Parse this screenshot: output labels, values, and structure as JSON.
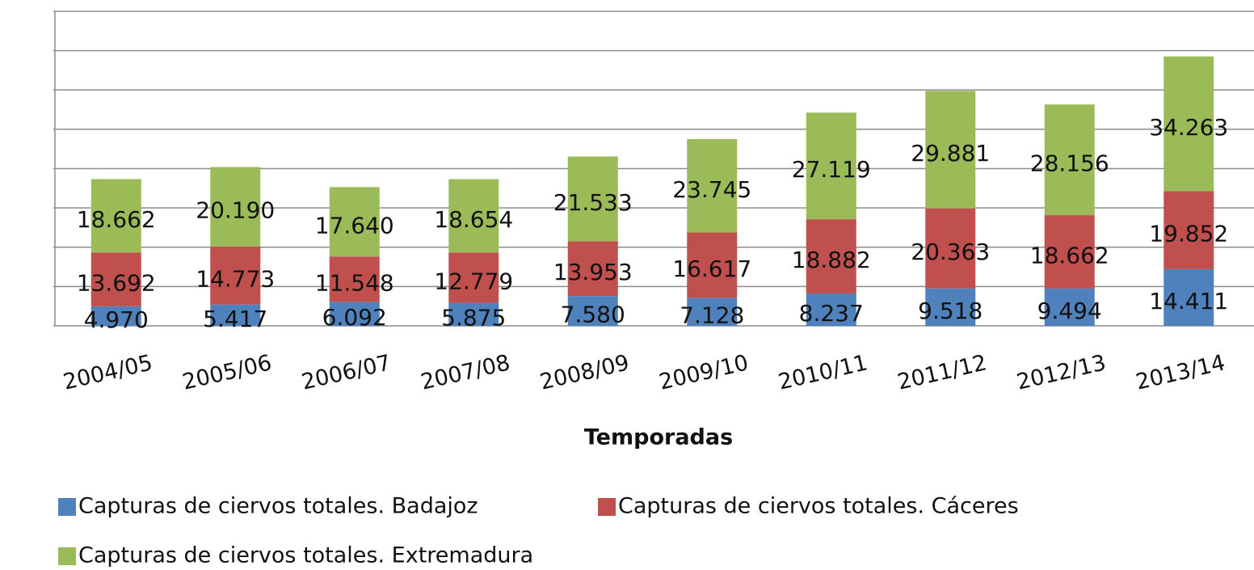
{
  "chart_data": {
    "type": "stacked_bar",
    "x_label": "Temporadas",
    "categories": [
      "2004/05",
      "2005/06",
      "2006/07",
      "2007/08",
      "2008/09",
      "2009/10",
      "2010/11",
      "2011/12",
      "2012/13",
      "2013/14"
    ],
    "series": [
      {
        "name": "Capturas de ciervos totales. Badajoz",
        "color": "#4f81bd",
        "values": [
          4970,
          5417,
          6092,
          5875,
          7580,
          7128,
          8237,
          9518,
          9494,
          14411
        ],
        "value_labels": [
          "4.970",
          "5.417",
          "6.092",
          "5.875",
          "7.580",
          "7.128",
          "8.237",
          "9.518",
          "9.494",
          "14.411"
        ]
      },
      {
        "name": "Capturas de ciervos totales. Cáceres",
        "color": "#c0504d",
        "values": [
          13692,
          14773,
          11548,
          12779,
          13953,
          16617,
          18882,
          20363,
          18662,
          19852
        ],
        "value_labels": [
          "13.692",
          "14.773",
          "11.548",
          "12.779",
          "13.953",
          "16.617",
          "18.882",
          "20.363",
          "18.662",
          "19.852"
        ]
      },
      {
        "name": "Capturas de ciervos totales. Extremadura",
        "color": "#9bbb59",
        "values": [
          18662,
          20190,
          17640,
          18654,
          21533,
          23745,
          27119,
          29881,
          28156,
          34263
        ],
        "value_labels": [
          "18.662",
          "20.190",
          "17.640",
          "18.654",
          "21.533",
          "23.745",
          "27.119",
          "29.881",
          "28.156",
          "34.263"
        ]
      }
    ],
    "ylim": [
      0,
      80000
    ],
    "yticks": [
      0,
      10000,
      20000,
      30000,
      40000,
      50000,
      60000,
      70000,
      80000
    ],
    "grid": true
  }
}
